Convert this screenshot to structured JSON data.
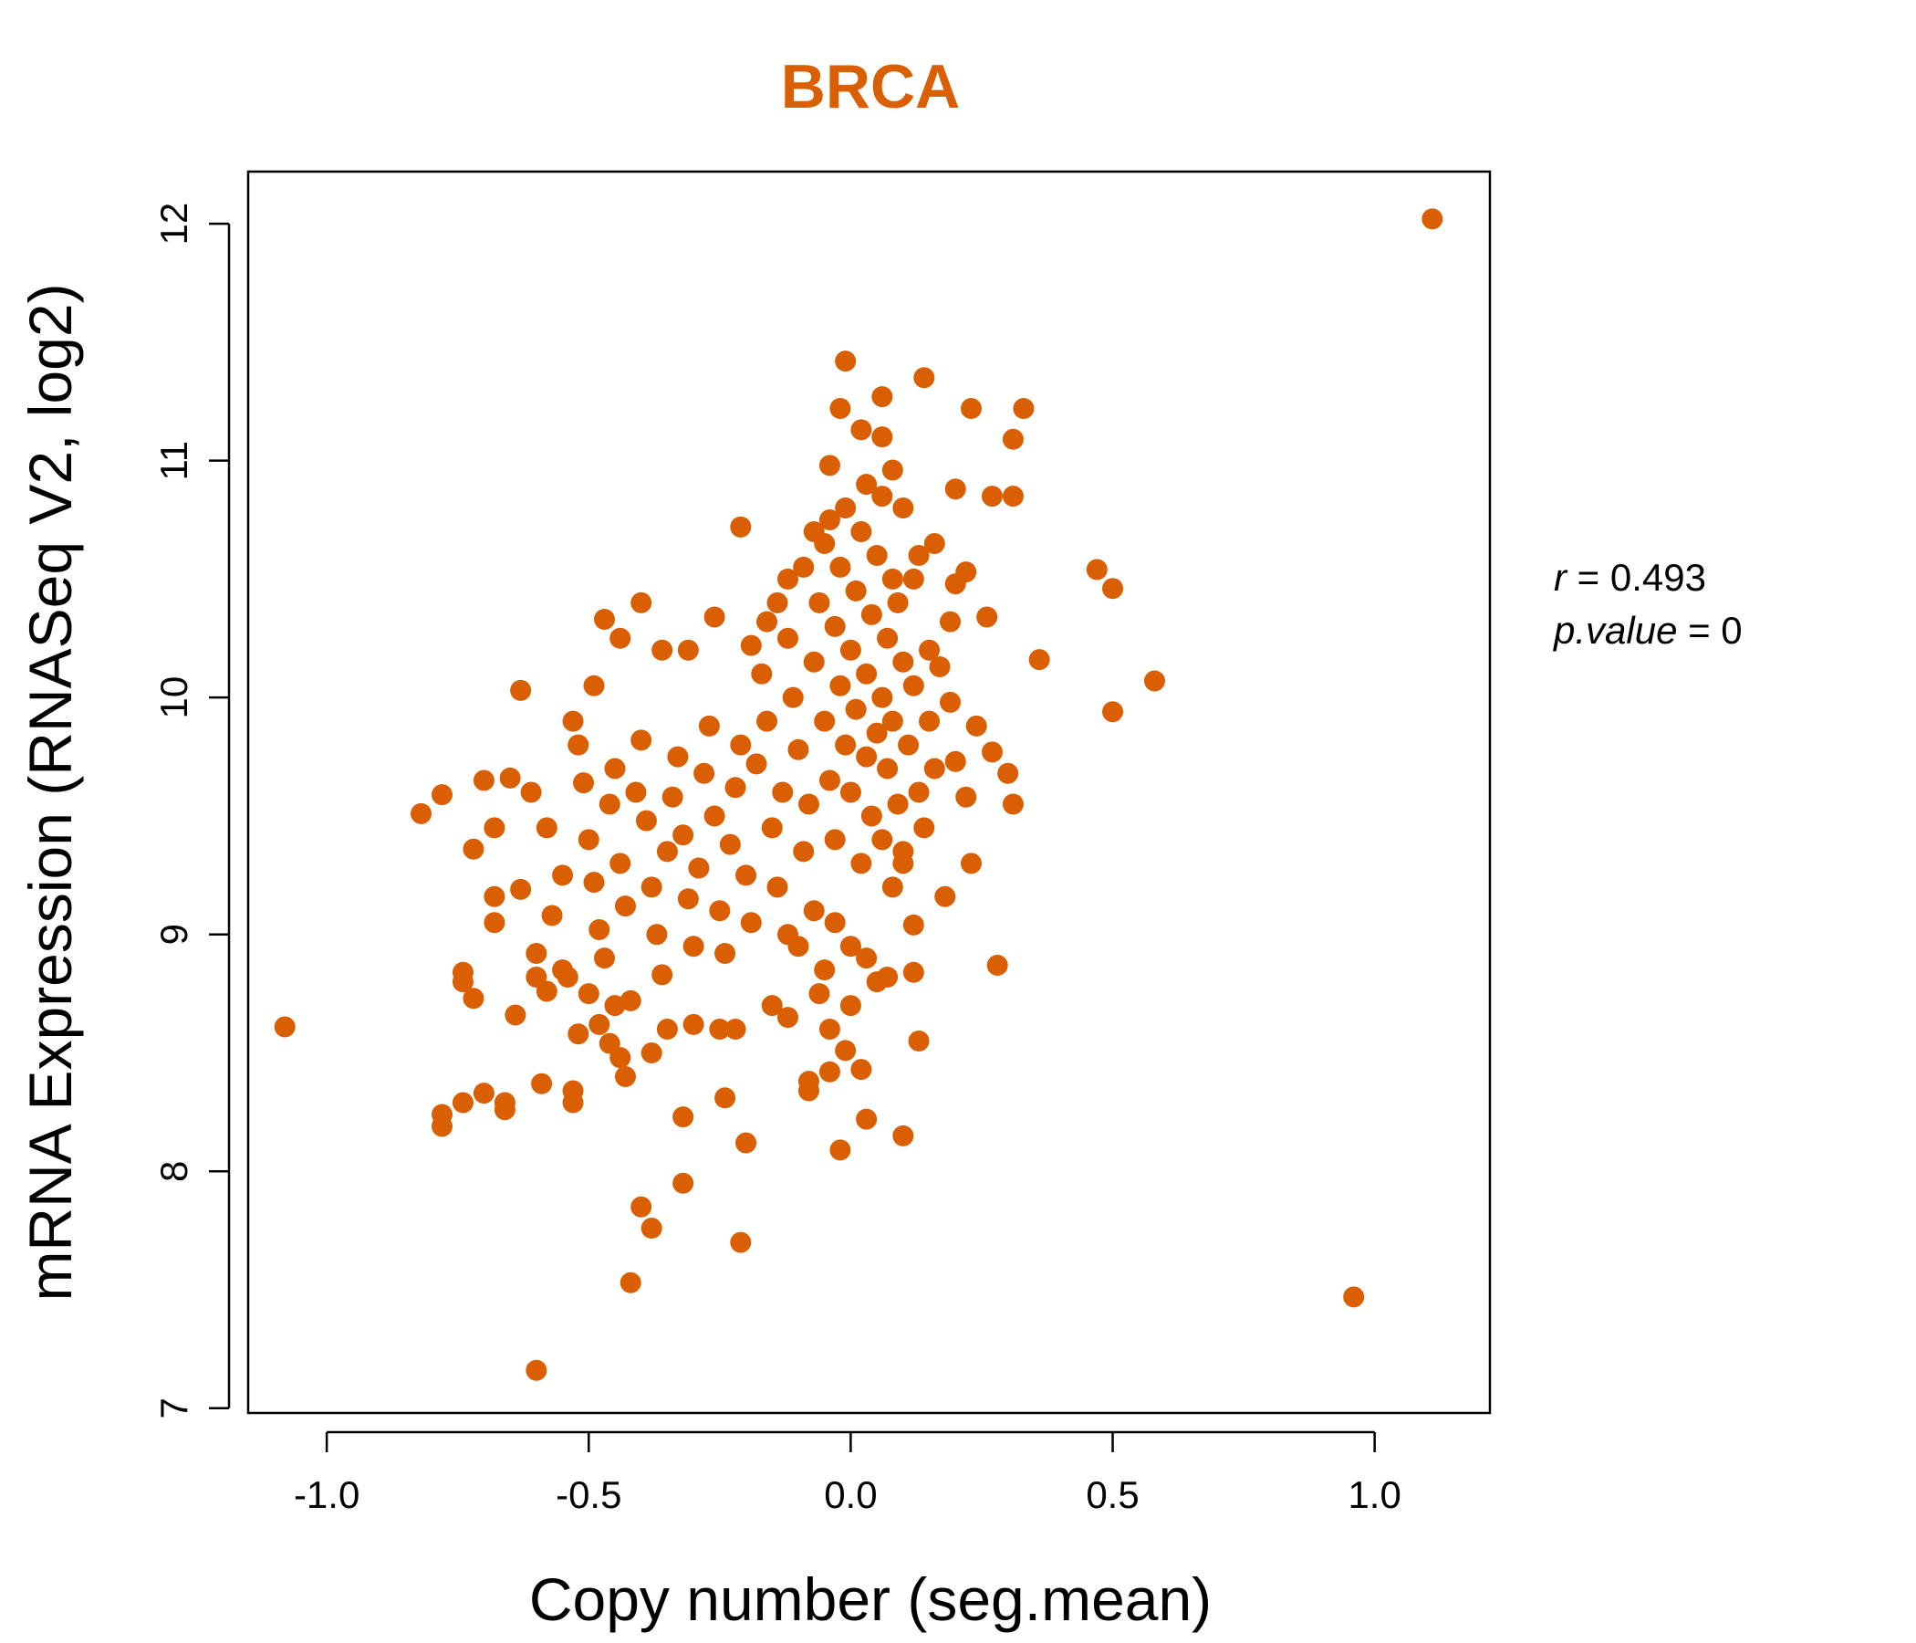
{
  "chart_data": {
    "type": "scatter",
    "title": "BRCA",
    "xlabel": "Copy number (seg.mean)",
    "ylabel": "mRNA Expression (RNASeq V2, log2)",
    "xlim": [
      -1.15,
      1.22
    ],
    "ylim": [
      6.98,
      12.22
    ],
    "x_ticks": [
      -1.0,
      -0.5,
      0.0,
      0.5,
      1.0
    ],
    "x_tick_labels": [
      "-1.0",
      "-0.5",
      "0.0",
      "0.5",
      "1.0"
    ],
    "y_ticks": [
      7,
      8,
      9,
      10,
      11,
      12
    ],
    "y_tick_labels": [
      "7",
      "8",
      "9",
      "10",
      "11",
      "12"
    ],
    "grid": false,
    "point_color": "#d95f02",
    "annotation": {
      "r_label": "r",
      "r_value": "= 0.493",
      "p_label": "p.value",
      "p_value": "= 0"
    },
    "series": [
      {
        "points": [
          [
            1.11,
            12.02
          ],
          [
            0.96,
            7.47
          ],
          [
            -1.08,
            8.61
          ],
          [
            -0.6,
            7.16
          ],
          [
            -0.42,
            7.53
          ],
          [
            -0.38,
            7.76
          ],
          [
            -0.4,
            7.85
          ],
          [
            -0.32,
            7.95
          ],
          [
            -0.21,
            7.7
          ],
          [
            -0.01,
            11.42
          ],
          [
            0.14,
            11.35
          ],
          [
            0.06,
            11.27
          ],
          [
            -0.02,
            11.22
          ],
          [
            0.23,
            11.22
          ],
          [
            0.33,
            11.22
          ],
          [
            0.02,
            11.13
          ],
          [
            0.06,
            11.1
          ],
          [
            0.31,
            11.09
          ],
          [
            0.08,
            10.96
          ],
          [
            -0.04,
            10.98
          ],
          [
            0.2,
            10.88
          ],
          [
            0.31,
            10.85
          ],
          [
            0.27,
            10.85
          ],
          [
            -0.21,
            10.72
          ],
          [
            0.47,
            10.54
          ],
          [
            0.5,
            10.46
          ],
          [
            0.36,
            10.16
          ],
          [
            0.58,
            10.07
          ],
          [
            0.5,
            9.94
          ],
          [
            -0.63,
            10.03
          ],
          [
            -0.49,
            10.05
          ],
          [
            -0.4,
            10.4
          ],
          [
            -0.47,
            10.33
          ],
          [
            -0.44,
            10.25
          ],
          [
            -0.26,
            10.34
          ],
          [
            -0.82,
            9.51
          ],
          [
            -0.78,
            9.59
          ],
          [
            -0.7,
            9.65
          ],
          [
            -0.68,
            9.45
          ],
          [
            -0.72,
            9.36
          ],
          [
            -0.68,
            9.16
          ],
          [
            -0.68,
            9.05
          ],
          [
            -0.74,
            8.84
          ],
          [
            -0.74,
            8.8
          ],
          [
            -0.72,
            8.73
          ],
          [
            -0.64,
            8.66
          ],
          [
            -0.78,
            8.24
          ],
          [
            -0.78,
            8.19
          ],
          [
            -0.74,
            8.29
          ],
          [
            -0.7,
            8.33
          ],
          [
            -0.66,
            8.29
          ],
          [
            -0.66,
            8.26
          ],
          [
            -0.59,
            8.37
          ],
          [
            -0.53,
            8.34
          ],
          [
            -0.53,
            8.29
          ],
          [
            -0.6,
            8.92
          ],
          [
            -0.6,
            8.82
          ],
          [
            -0.58,
            8.76
          ],
          [
            -0.54,
            8.82
          ],
          [
            -0.52,
            8.58
          ],
          [
            -0.48,
            8.62
          ],
          [
            -0.46,
            8.54
          ],
          [
            -0.44,
            8.48
          ],
          [
            -0.43,
            8.4
          ],
          [
            -0.32,
            8.23
          ],
          [
            -0.24,
            8.31
          ],
          [
            -0.2,
            8.12
          ],
          [
            0.1,
            8.15
          ],
          [
            -0.02,
            8.09
          ],
          [
            0.03,
            8.22
          ],
          [
            0.02,
            8.43
          ],
          [
            -0.08,
            8.38
          ],
          [
            -0.08,
            8.34
          ],
          [
            -0.04,
            8.42
          ],
          [
            -0.01,
            8.51
          ],
          [
            0.13,
            8.55
          ],
          [
            0.28,
            8.87
          ],
          [
            0.12,
            8.84
          ],
          [
            0.07,
            8.82
          ],
          [
            0.12,
            9.04
          ],
          [
            0.18,
            9.16
          ],
          [
            0.23,
            9.3
          ],
          [
            0.31,
            9.55
          ],
          [
            0.3,
            9.68
          ],
          [
            0.27,
            9.77
          ],
          [
            0.24,
            9.88
          ],
          [
            0.19,
            9.98
          ],
          [
            0.2,
            9.73
          ],
          [
            0.22,
            9.58
          ],
          [
            0.15,
            10.2
          ],
          [
            0.17,
            10.13
          ],
          [
            0.19,
            10.32
          ],
          [
            0.2,
            10.48
          ],
          [
            0.22,
            10.53
          ],
          [
            0.26,
            10.34
          ],
          [
            -0.65,
            9.66
          ],
          [
            -0.63,
            9.19
          ],
          [
            -0.61,
            9.6
          ],
          [
            -0.58,
            9.45
          ],
          [
            -0.57,
            9.08
          ],
          [
            -0.55,
            9.25
          ],
          [
            -0.53,
            9.9
          ],
          [
            -0.52,
            9.8
          ],
          [
            -0.51,
            9.64
          ],
          [
            -0.5,
            9.4
          ],
          [
            -0.49,
            9.22
          ],
          [
            -0.48,
            9.02
          ],
          [
            -0.47,
            8.9
          ],
          [
            -0.46,
            9.55
          ],
          [
            -0.45,
            9.7
          ],
          [
            -0.44,
            9.3
          ],
          [
            -0.43,
            9.12
          ],
          [
            -0.42,
            8.72
          ],
          [
            -0.41,
            9.6
          ],
          [
            -0.4,
            9.82
          ],
          [
            -0.39,
            9.48
          ],
          [
            -0.38,
            9.2
          ],
          [
            -0.37,
            9.0
          ],
          [
            -0.36,
            8.83
          ],
          [
            -0.35,
            9.35
          ],
          [
            -0.34,
            9.58
          ],
          [
            -0.33,
            9.75
          ],
          [
            -0.32,
            9.42
          ],
          [
            -0.31,
            9.15
          ],
          [
            -0.3,
            8.95
          ],
          [
            -0.29,
            9.28
          ],
          [
            -0.28,
            9.68
          ],
          [
            -0.27,
            9.88
          ],
          [
            -0.26,
            9.5
          ],
          [
            -0.25,
            9.1
          ],
          [
            -0.24,
            8.92
          ],
          [
            -0.23,
            9.38
          ],
          [
            -0.22,
            9.62
          ],
          [
            -0.21,
            9.8
          ],
          [
            -0.2,
            9.25
          ],
          [
            -0.19,
            9.05
          ],
          [
            -0.18,
            9.72
          ],
          [
            -0.17,
            10.1
          ],
          [
            -0.16,
            9.9
          ],
          [
            -0.15,
            9.45
          ],
          [
            -0.14,
            9.2
          ],
          [
            -0.13,
            9.6
          ],
          [
            -0.12,
            10.25
          ],
          [
            -0.11,
            10.0
          ],
          [
            -0.1,
            9.78
          ],
          [
            -0.09,
            9.35
          ],
          [
            -0.08,
            9.55
          ],
          [
            -0.07,
            10.15
          ],
          [
            -0.06,
            10.4
          ],
          [
            -0.05,
            10.65
          ],
          [
            -0.05,
            9.9
          ],
          [
            -0.04,
            9.65
          ],
          [
            -0.03,
            10.3
          ],
          [
            -0.03,
            9.4
          ],
          [
            -0.02,
            10.55
          ],
          [
            -0.02,
            10.05
          ],
          [
            -0.01,
            9.8
          ],
          [
            -0.01,
            10.8
          ],
          [
            0.0,
            10.2
          ],
          [
            0.0,
            9.6
          ],
          [
            0.01,
            10.45
          ],
          [
            0.01,
            9.95
          ],
          [
            0.02,
            10.7
          ],
          [
            0.02,
            9.3
          ],
          [
            0.03,
            10.1
          ],
          [
            0.03,
            9.75
          ],
          [
            0.04,
            10.35
          ],
          [
            0.04,
            9.5
          ],
          [
            0.05,
            10.6
          ],
          [
            0.05,
            9.85
          ],
          [
            0.06,
            10.0
          ],
          [
            0.06,
            9.4
          ],
          [
            0.07,
            10.25
          ],
          [
            0.07,
            9.7
          ],
          [
            0.08,
            10.5
          ],
          [
            0.08,
            9.9
          ],
          [
            0.09,
            9.55
          ],
          [
            0.1,
            10.15
          ],
          [
            0.1,
            9.35
          ],
          [
            0.11,
            9.8
          ],
          [
            0.12,
            10.05
          ],
          [
            0.13,
            9.6
          ],
          [
            0.14,
            9.45
          ],
          [
            0.15,
            9.9
          ],
          [
            0.16,
            9.7
          ],
          [
            -0.12,
            9.0
          ],
          [
            -0.1,
            8.95
          ],
          [
            -0.07,
            9.1
          ],
          [
            -0.05,
            8.85
          ],
          [
            -0.03,
            9.05
          ],
          [
            0.0,
            8.95
          ],
          [
            0.03,
            8.9
          ],
          [
            0.05,
            8.8
          ],
          [
            0.08,
            9.2
          ],
          [
            0.1,
            9.3
          ],
          [
            -0.22,
            8.6
          ],
          [
            -0.25,
            8.6
          ],
          [
            -0.3,
            8.62
          ],
          [
            -0.35,
            8.6
          ],
          [
            -0.38,
            8.5
          ],
          [
            -0.45,
            8.7
          ],
          [
            -0.5,
            8.75
          ],
          [
            -0.55,
            8.85
          ],
          [
            -0.12,
            8.65
          ],
          [
            -0.15,
            8.7
          ],
          [
            -0.06,
            8.75
          ],
          [
            -0.04,
            8.6
          ],
          [
            0.0,
            8.7
          ],
          [
            -0.36,
            10.2
          ],
          [
            -0.31,
            10.2
          ],
          [
            -0.19,
            10.22
          ],
          [
            -0.16,
            10.32
          ],
          [
            -0.14,
            10.4
          ],
          [
            -0.12,
            10.5
          ],
          [
            -0.09,
            10.55
          ],
          [
            -0.07,
            10.7
          ],
          [
            -0.04,
            10.75
          ],
          [
            0.03,
            10.9
          ],
          [
            0.06,
            10.85
          ],
          [
            0.1,
            10.8
          ],
          [
            0.13,
            10.6
          ],
          [
            0.16,
            10.65
          ],
          [
            0.12,
            10.5
          ],
          [
            0.09,
            10.4
          ]
        ]
      }
    ]
  }
}
